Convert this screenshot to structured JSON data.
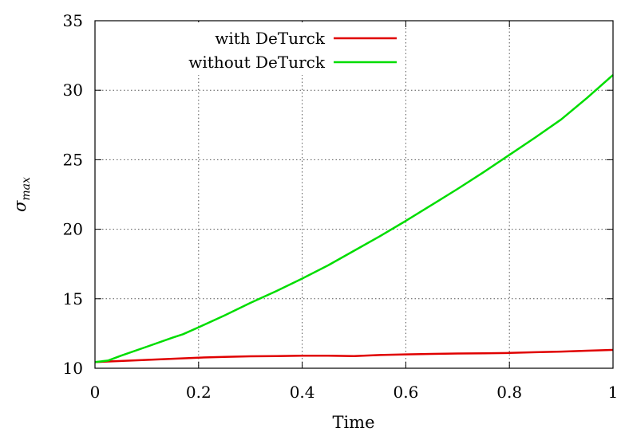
{
  "chart_data": {
    "type": "line",
    "title": "",
    "xlabel": "Time",
    "ylabel": "σ",
    "ylabel_subscript": "max",
    "xlim": [
      0,
      1
    ],
    "ylim": [
      10,
      35
    ],
    "x_ticks": [
      0,
      0.2,
      0.4,
      0.6,
      0.8,
      1
    ],
    "x_tick_labels": [
      "0",
      "0.2",
      "0.4",
      "0.6",
      "0.8",
      "1"
    ],
    "y_ticks": [
      10,
      15,
      20,
      25,
      30,
      35
    ],
    "y_tick_labels": [
      "10",
      "15",
      "20",
      "25",
      "30",
      "35"
    ],
    "grid": true,
    "legend_position": "top-right",
    "series": [
      {
        "name": "with DeTurck",
        "color": "#e00000",
        "x": [
          0,
          0.05,
          0.1,
          0.15,
          0.2,
          0.25,
          0.3,
          0.35,
          0.4,
          0.45,
          0.5,
          0.55,
          0.6,
          0.65,
          0.7,
          0.75,
          0.8,
          0.85,
          0.9,
          0.95,
          1.0
        ],
        "y": [
          10.45,
          10.52,
          10.6,
          10.68,
          10.76,
          10.82,
          10.86,
          10.88,
          10.9,
          10.9,
          10.88,
          10.95,
          11.0,
          11.03,
          11.06,
          11.08,
          11.1,
          11.15,
          11.2,
          11.26,
          11.32
        ]
      },
      {
        "name": "without DeTurck",
        "color": "#00dd00",
        "x": [
          0,
          0.025,
          0.05,
          0.1,
          0.15,
          0.17,
          0.2,
          0.25,
          0.3,
          0.35,
          0.4,
          0.45,
          0.5,
          0.55,
          0.6,
          0.65,
          0.7,
          0.75,
          0.8,
          0.85,
          0.9,
          0.95,
          1.0
        ],
        "y": [
          10.45,
          10.55,
          10.9,
          11.55,
          12.2,
          12.45,
          12.95,
          13.8,
          14.7,
          15.55,
          16.45,
          17.4,
          18.45,
          19.5,
          20.6,
          21.75,
          22.9,
          24.1,
          25.35,
          26.6,
          27.9,
          29.45,
          31.1
        ]
      }
    ]
  }
}
